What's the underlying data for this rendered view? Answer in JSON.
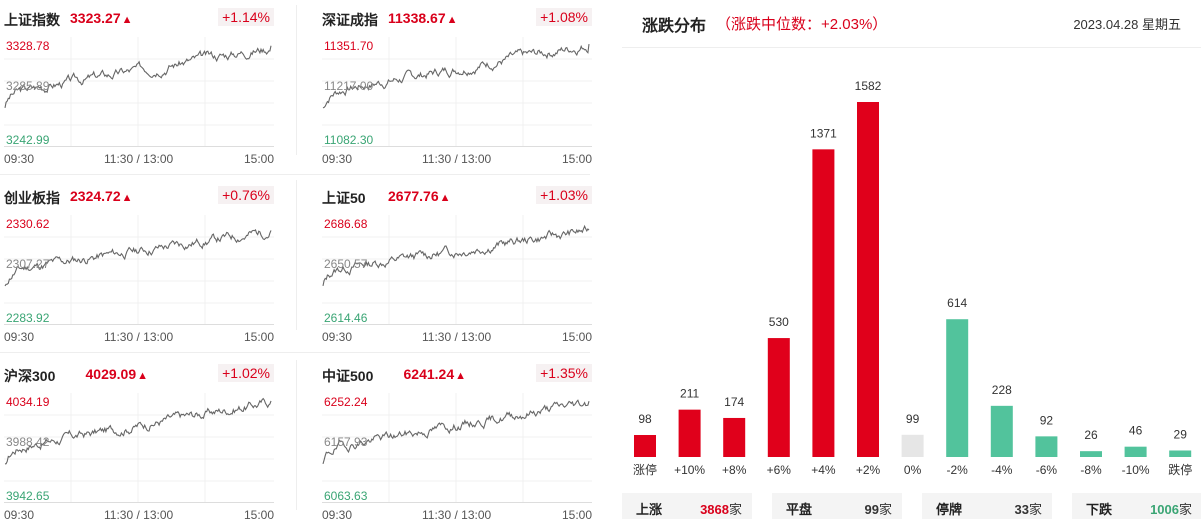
{
  "indices": [
    {
      "name": "上证指数",
      "value": "3323.27",
      "arrow": "▲",
      "change": "+1.14%",
      "high": "3328.78",
      "mid": "3285.89",
      "low": "3242.99",
      "times": [
        "09:30",
        "11:30 / 13:00",
        "15:00"
      ],
      "line_color": "#666666",
      "seed": 3
    },
    {
      "name": "深证成指",
      "value": "11338.67",
      "arrow": "▲",
      "change": "+1.08%",
      "high": "11351.70",
      "mid": "11217.00",
      "low": "11082.30",
      "times": [
        "09:30",
        "11:30 / 13:00",
        "15:00"
      ],
      "line_color": "#666666",
      "seed": 7
    },
    {
      "name": "创业板指",
      "value": "2324.72",
      "arrow": "▲",
      "change": "+0.76%",
      "high": "2330.62",
      "mid": "2307.27",
      "low": "2283.92",
      "times": [
        "09:30",
        "11:30 / 13:00",
        "15:00"
      ],
      "line_color": "#666666",
      "seed": 11
    },
    {
      "name": "上证50",
      "value": "2677.76",
      "arrow": "▲",
      "change": "+1.03%",
      "high": "2686.68",
      "mid": "2650.57",
      "low": "2614.46",
      "times": [
        "09:30",
        "11:30 / 13:00",
        "15:00"
      ],
      "line_color": "#666666",
      "seed": 13
    },
    {
      "name": "沪深300",
      "value": "4029.09",
      "arrow": "▲",
      "change": "+1.02%",
      "high": "4034.19",
      "mid": "3988.42",
      "low": "3942.65",
      "times": [
        "09:30",
        "11:30 / 13:00",
        "15:00"
      ],
      "line_color": "#666666",
      "seed": 17
    },
    {
      "name": "中证500",
      "value": "6241.24",
      "arrow": "▲",
      "change": "+1.35%",
      "high": "6252.24",
      "mid": "6157.93",
      "low": "6063.63",
      "times": [
        "09:30",
        "11:30 / 13:00",
        "15:00"
      ],
      "line_color": "#666666",
      "seed": 19
    }
  ],
  "distribution": {
    "title": "涨跌分布",
    "subtitle": "（涨跌中位数：+2.03%）",
    "date": "2023.04.28 星期五"
  },
  "colors": {
    "up": "#e0001b",
    "down": "#52c39c",
    "flat": "#e6e6e6",
    "red_text": "#d9001b",
    "green_text": "#3aa574"
  },
  "chart_data": {
    "type": "bar",
    "categories": [
      "涨停",
      "+10%",
      "+8%",
      "+6%",
      "+4%",
      "+2%",
      "0%",
      "-2%",
      "-4%",
      "-6%",
      "-8%",
      "-10%",
      "跌停"
    ],
    "values": [
      98,
      211,
      174,
      530,
      1371,
      1582,
      99,
      614,
      228,
      92,
      26,
      46,
      29
    ],
    "bar_colors": [
      "up",
      "up",
      "up",
      "up",
      "up",
      "up",
      "flat",
      "down",
      "down",
      "down",
      "down",
      "down",
      "down"
    ],
    "ylim": [
      0,
      1582
    ],
    "grid": false,
    "title": "涨跌分布",
    "xlabel": "",
    "ylabel": ""
  },
  "summary": [
    {
      "label": "上涨",
      "value": "3868",
      "unit": "家",
      "color": "#d9001b"
    },
    {
      "label": "平盘",
      "value": "99",
      "unit": "家",
      "color": "#333333"
    },
    {
      "label": "停牌",
      "value": "33",
      "unit": "家",
      "color": "#333333"
    },
    {
      "label": "下跌",
      "value": "1006",
      "unit": "家",
      "color": "#3aa574"
    }
  ]
}
